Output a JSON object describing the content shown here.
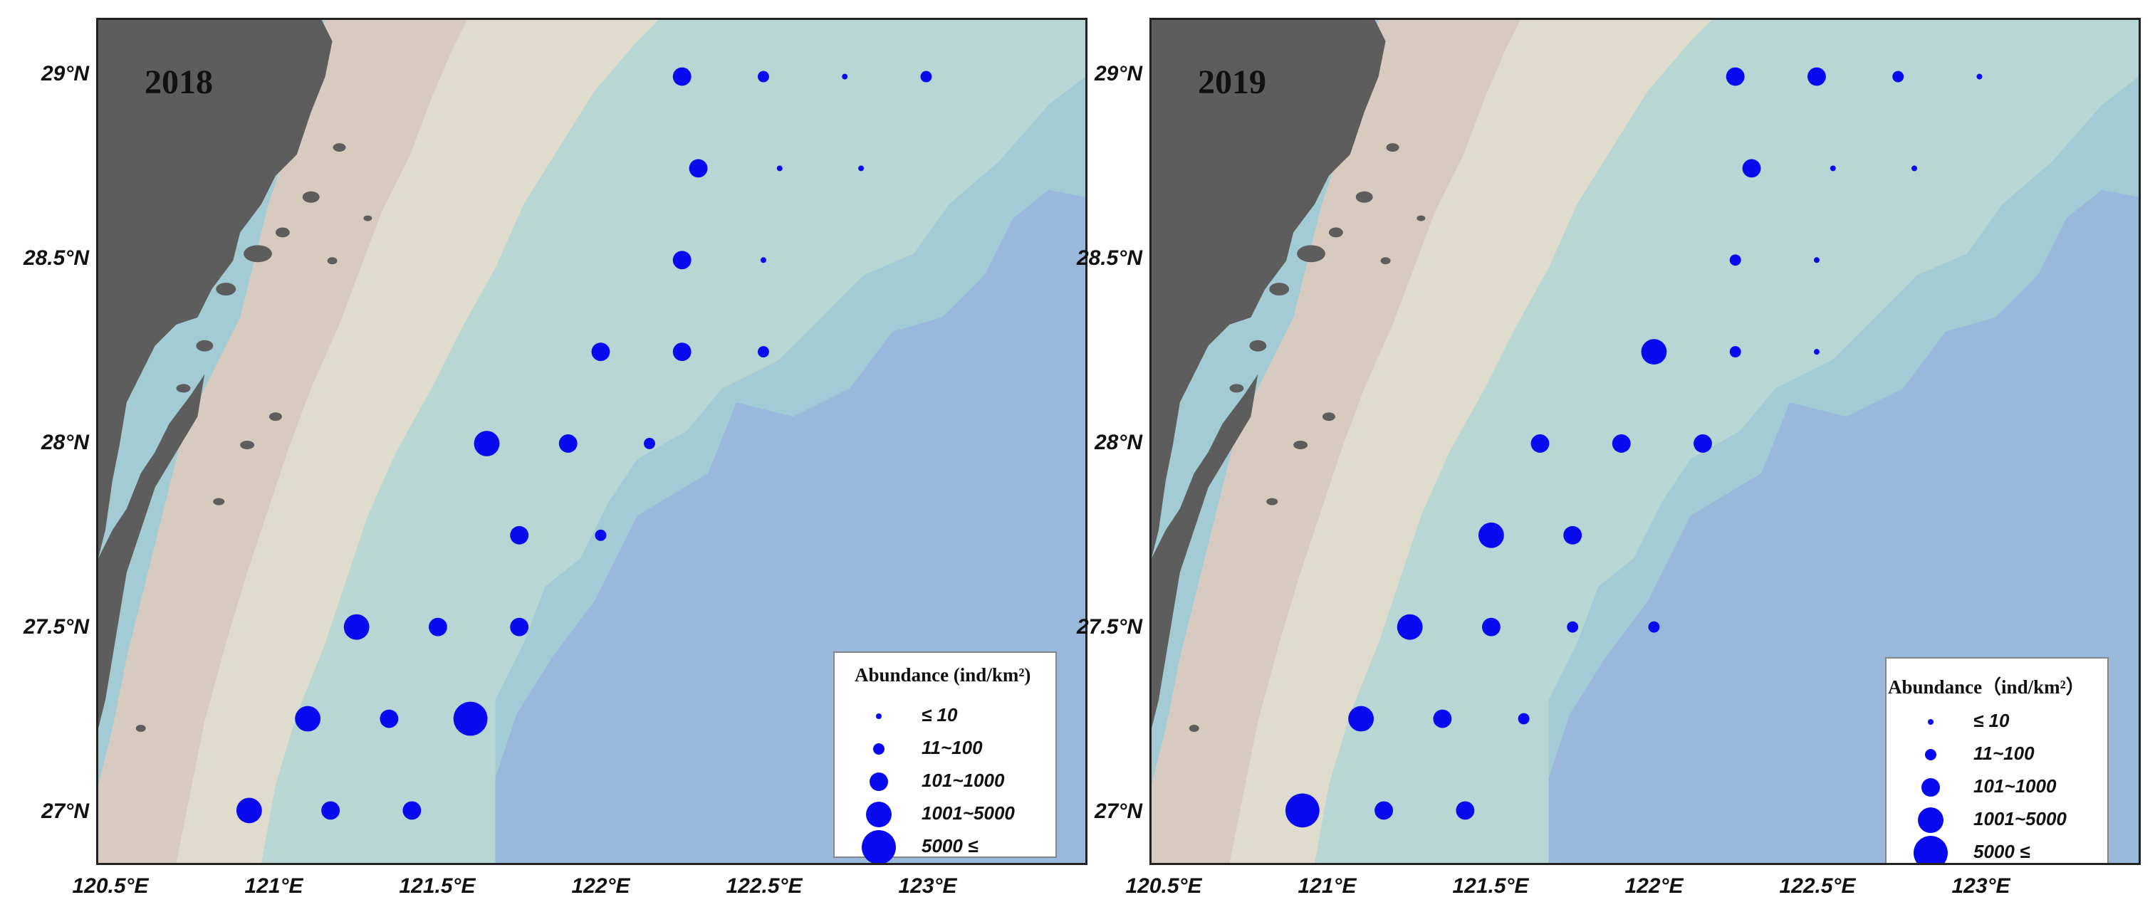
{
  "panels": [
    {
      "year": "2018",
      "stations": [
        {
          "lon": 122.25,
          "lat": 29.0,
          "class": 3
        },
        {
          "lon": 122.5,
          "lat": 29.0,
          "class": 2
        },
        {
          "lon": 122.75,
          "lat": 29.0,
          "class": 1
        },
        {
          "lon": 123.0,
          "lat": 29.0,
          "class": 2
        },
        {
          "lon": 122.3,
          "lat": 28.75,
          "class": 3
        },
        {
          "lon": 122.55,
          "lat": 28.75,
          "class": 1
        },
        {
          "lon": 122.8,
          "lat": 28.75,
          "class": 1
        },
        {
          "lon": 122.25,
          "lat": 28.5,
          "class": 3
        },
        {
          "lon": 122.5,
          "lat": 28.5,
          "class": 1
        },
        {
          "lon": 122.0,
          "lat": 28.25,
          "class": 3
        },
        {
          "lon": 122.25,
          "lat": 28.25,
          "class": 3
        },
        {
          "lon": 122.5,
          "lat": 28.25,
          "class": 2
        },
        {
          "lon": 121.65,
          "lat": 28.0,
          "class": 4
        },
        {
          "lon": 121.9,
          "lat": 28.0,
          "class": 3
        },
        {
          "lon": 122.15,
          "lat": 28.0,
          "class": 2
        },
        {
          "lon": 121.75,
          "lat": 27.75,
          "class": 3
        },
        {
          "lon": 122.0,
          "lat": 27.75,
          "class": 2
        },
        {
          "lon": 121.25,
          "lat": 27.5,
          "class": 4
        },
        {
          "lon": 121.5,
          "lat": 27.5,
          "class": 3
        },
        {
          "lon": 121.75,
          "lat": 27.5,
          "class": 3
        },
        {
          "lon": 121.1,
          "lat": 27.25,
          "class": 4
        },
        {
          "lon": 121.35,
          "lat": 27.25,
          "class": 3
        },
        {
          "lon": 121.6,
          "lat": 27.25,
          "class": 5
        },
        {
          "lon": 120.92,
          "lat": 27.0,
          "class": 4
        },
        {
          "lon": 121.17,
          "lat": 27.0,
          "class": 3
        },
        {
          "lon": 121.42,
          "lat": 27.0,
          "class": 3
        }
      ]
    },
    {
      "year": "2019",
      "stations": [
        {
          "lon": 122.25,
          "lat": 29.0,
          "class": 3
        },
        {
          "lon": 122.5,
          "lat": 29.0,
          "class": 3
        },
        {
          "lon": 122.75,
          "lat": 29.0,
          "class": 2
        },
        {
          "lon": 123.0,
          "lat": 29.0,
          "class": 1
        },
        {
          "lon": 122.3,
          "lat": 28.75,
          "class": 3
        },
        {
          "lon": 122.55,
          "lat": 28.75,
          "class": 1
        },
        {
          "lon": 122.8,
          "lat": 28.75,
          "class": 1
        },
        {
          "lon": 122.25,
          "lat": 28.5,
          "class": 2
        },
        {
          "lon": 122.5,
          "lat": 28.5,
          "class": 1
        },
        {
          "lon": 122.0,
          "lat": 28.25,
          "class": 4
        },
        {
          "lon": 122.25,
          "lat": 28.25,
          "class": 2
        },
        {
          "lon": 122.5,
          "lat": 28.25,
          "class": 1
        },
        {
          "lon": 121.65,
          "lat": 28.0,
          "class": 3
        },
        {
          "lon": 121.9,
          "lat": 28.0,
          "class": 3
        },
        {
          "lon": 122.15,
          "lat": 28.0,
          "class": 3
        },
        {
          "lon": 121.5,
          "lat": 27.75,
          "class": 4
        },
        {
          "lon": 121.75,
          "lat": 27.75,
          "class": 3
        },
        {
          "lon": 121.25,
          "lat": 27.5,
          "class": 4
        },
        {
          "lon": 121.5,
          "lat": 27.5,
          "class": 3
        },
        {
          "lon": 121.75,
          "lat": 27.5,
          "class": 2
        },
        {
          "lon": 122.0,
          "lat": 27.5,
          "class": 2
        },
        {
          "lon": 121.1,
          "lat": 27.25,
          "class": 4
        },
        {
          "lon": 121.35,
          "lat": 27.25,
          "class": 3
        },
        {
          "lon": 121.6,
          "lat": 27.25,
          "class": 2
        },
        {
          "lon": 120.92,
          "lat": 27.0,
          "class": 5
        },
        {
          "lon": 121.17,
          "lat": 27.0,
          "class": 3
        },
        {
          "lon": 121.42,
          "lat": 27.0,
          "class": 3
        }
      ]
    }
  ],
  "lat_labels": [
    "29°N",
    "28.5°N",
    "28°N",
    "27.5°N",
    "27°N"
  ],
  "lat_values": [
    29.0,
    28.5,
    28.0,
    27.5,
    27.0
  ],
  "lon_labels": [
    "120.5°E",
    "121°E",
    "121.5°E",
    "122°E",
    "122.5°E",
    "123°E"
  ],
  "lon_values": [
    120.5,
    121.0,
    121.5,
    122.0,
    122.5,
    123.0
  ],
  "legend": {
    "title_2018": "Abundance (ind/km²)",
    "title_2019": "Abundance（ind/km²）",
    "classes": [
      {
        "class": 1,
        "label": "≤ 10"
      },
      {
        "class": 2,
        "label": "11~100"
      },
      {
        "class": 3,
        "label": "101~1000"
      },
      {
        "class": 4,
        "label": "1001~5000"
      },
      {
        "class": 5,
        "label": "5000 ≤"
      }
    ]
  },
  "colors": {
    "marker": "#0a0aee",
    "land": "#5d5d5d",
    "shelf_near": "#d7cabf",
    "shelf_mid": "#e0dccd",
    "sea_light": "#b7d6d4",
    "sea_mid": "#a3cbd6",
    "sea_deep": "#99b8dc"
  }
}
